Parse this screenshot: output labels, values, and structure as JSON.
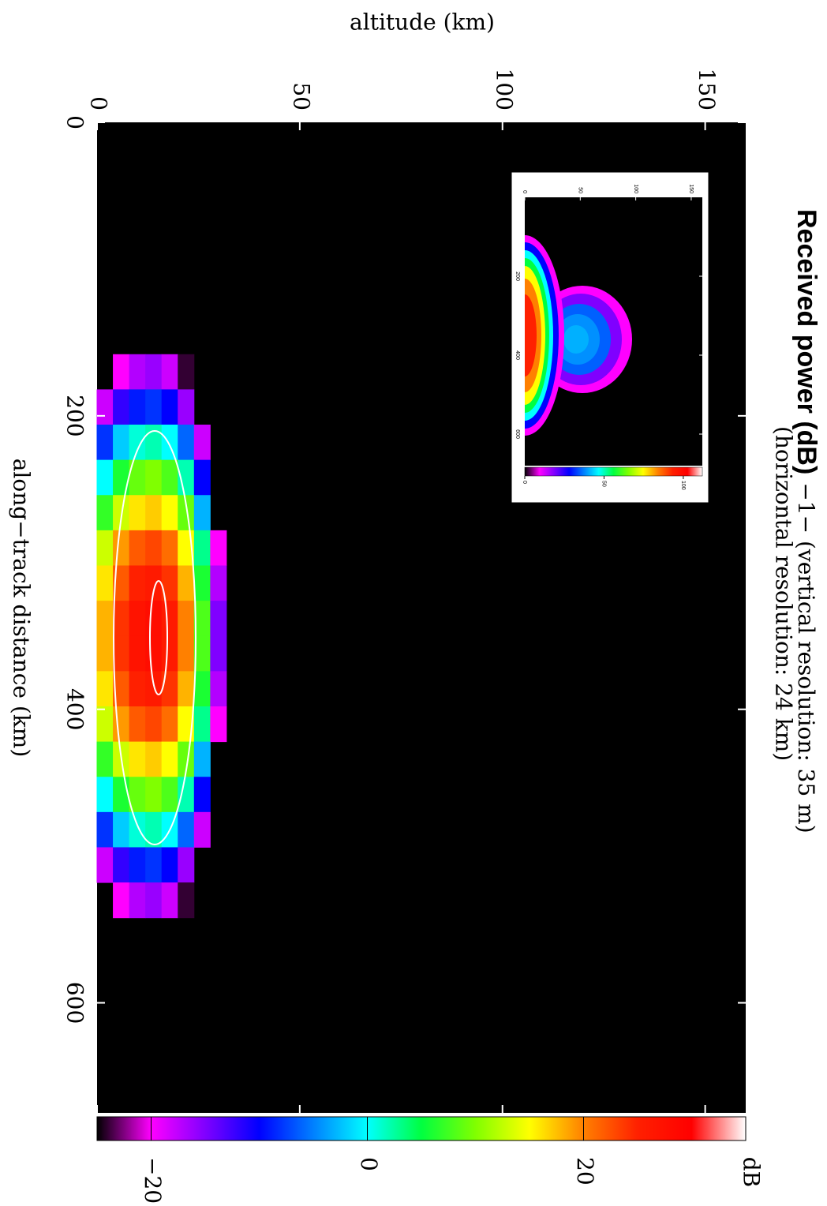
{
  "chart_data": [
    {
      "type": "heatmap",
      "title": "Received power (dB)",
      "subtitle": "−1− (vertical resolution: 35 m)",
      "subtitle_2": "(horizontal resolution: 24 km)",
      "x_label": "along−track distance (km)",
      "y_label": "altitude (km)",
      "colorbar_label": "dB",
      "x": [
        170,
        194,
        218,
        242,
        266,
        290,
        314,
        338,
        362,
        386,
        410,
        434,
        458,
        482,
        506,
        530
      ],
      "y": [
        2,
        6,
        10,
        14,
        18,
        22,
        26,
        30
      ],
      "z": [
        [
          null,
          -20,
          -17,
          -16,
          -18,
          -24,
          null,
          null
        ],
        [
          -18,
          -12,
          -9,
          -8,
          -10,
          -16,
          null,
          null
        ],
        [
          -8,
          -2,
          1,
          2,
          0,
          -6,
          -18,
          null
        ],
        [
          0,
          6,
          9,
          10,
          8,
          2,
          -10,
          null
        ],
        [
          7,
          13,
          16,
          17,
          15,
          9,
          -3,
          null
        ],
        [
          13,
          19,
          22,
          23,
          21,
          15,
          3,
          -20
        ],
        [
          16,
          22,
          25,
          26,
          24,
          18,
          6,
          -17
        ],
        [
          18,
          24,
          27,
          28,
          26,
          20,
          8,
          -15
        ],
        [
          18,
          24,
          27,
          28,
          26,
          20,
          8,
          -15
        ],
        [
          16,
          22,
          25,
          26,
          24,
          18,
          6,
          -17
        ],
        [
          13,
          19,
          22,
          23,
          21,
          15,
          3,
          -20
        ],
        [
          7,
          13,
          16,
          17,
          15,
          9,
          -3,
          null
        ],
        [
          0,
          6,
          9,
          10,
          8,
          2,
          -10,
          null
        ],
        [
          -8,
          -2,
          1,
          2,
          0,
          -6,
          -18,
          null
        ],
        [
          -18,
          -12,
          -9,
          -8,
          -10,
          -16,
          null,
          null
        ],
        [
          null,
          -20,
          -17,
          -16,
          -18,
          -24,
          null,
          null
        ]
      ],
      "xlim": [
        0,
        675
      ],
      "xticks": [
        0,
        200,
        400,
        600
      ],
      "ylim": [
        0,
        160
      ],
      "yticks": [
        0,
        50,
        100,
        150
      ],
      "zlim": [
        -25,
        35
      ],
      "zticks": [
        {
          "value": -20,
          "label": "−20"
        },
        0,
        20
      ],
      "colorscale": [
        "#000000",
        "#ff00ff",
        "#8000ff",
        "#0000ff",
        "#0080ff",
        "#00ffff",
        "#00ff40",
        "#80ff00",
        "#ffff00",
        "#ff8000",
        "#ff2000",
        "#ff0000",
        "#ffffff"
      ]
    },
    {
      "type": "image",
      "xlim": [
        0,
        680
      ],
      "xticks": [
        200,
        400,
        600
      ],
      "ylim": [
        0,
        160
      ],
      "yticks": [
        0,
        50,
        100,
        150
      ],
      "zlim": [
        0,
        112
      ],
      "zticks": [
        0,
        50,
        100
      ],
      "colorscale": [
        "#000000",
        "#ff00ff",
        "#8000ff",
        "#0000ff",
        "#0080ff",
        "#00ffff",
        "#00ff40",
        "#80ff00",
        "#ffff00",
        "#ff8000",
        "#ff2000",
        "#ff0000",
        "#ffffff"
      ]
    }
  ]
}
